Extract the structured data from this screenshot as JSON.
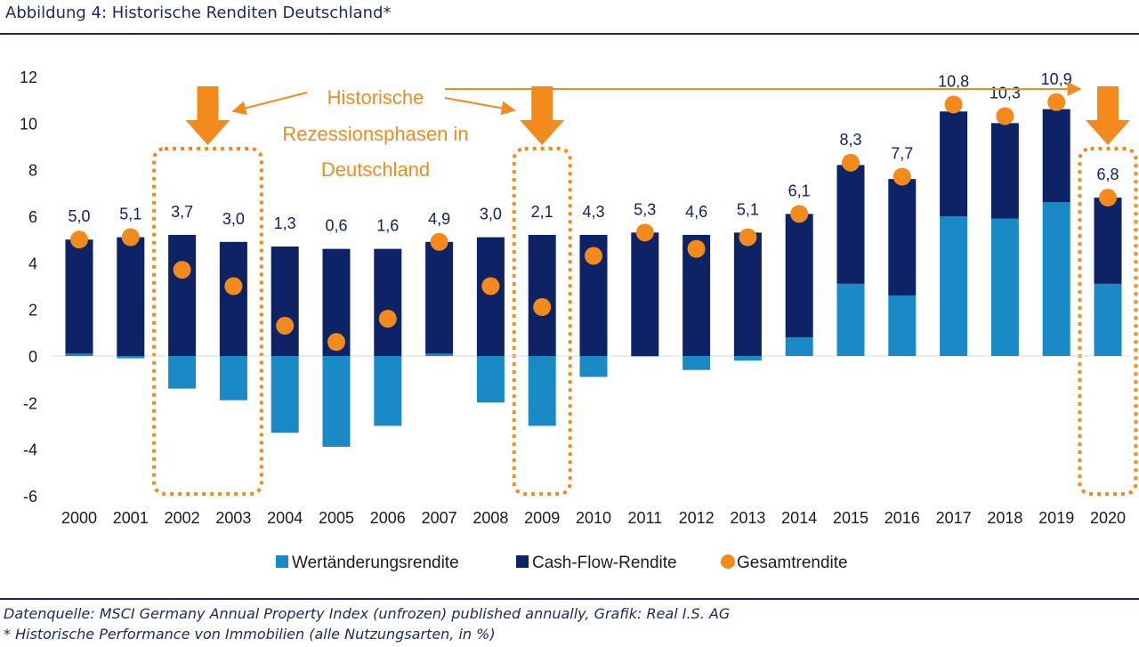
{
  "title": "Abbildung 4: Historische Renditen Deutschland*",
  "footnotes": {
    "source": "Datenquelle: MSCI Germany Annual Property Index (unfrozen) published annually, Grafik: Real I.S. AG",
    "note": "* Historische Performance von Immobilien (alle Nutzungsarten, in %)"
  },
  "annotation": {
    "lines": [
      "Historische",
      "Rezessionsphasen in",
      "Deutschland"
    ],
    "highlight_periods": [
      [
        "2002",
        "2003"
      ],
      [
        "2009"
      ],
      [
        "2020"
      ]
    ]
  },
  "colors": {
    "wertaenderung": "#1a8ac6",
    "cashflow": "#0e2266",
    "gesamt": "#f28a1c",
    "label": "#0e2266",
    "highlight": "#f28a1c"
  },
  "chart_data": {
    "type": "bar",
    "stacked": true,
    "categories": [
      "2000",
      "2001",
      "2002",
      "2003",
      "2004",
      "2005",
      "2006",
      "2007",
      "2008",
      "2009",
      "2010",
      "2011",
      "2012",
      "2013",
      "2014",
      "2015",
      "2016",
      "2017",
      "2018",
      "2019",
      "2020"
    ],
    "series": [
      {
        "name": "Wertänderungsrendite",
        "kind": "bar",
        "values": [
          0.1,
          -0.1,
          -1.4,
          -1.9,
          -3.3,
          -3.9,
          -3.0,
          0.1,
          -2.0,
          -3.0,
          -0.9,
          0.0,
          -0.6,
          -0.2,
          0.8,
          3.1,
          2.6,
          6.0,
          5.9,
          6.6,
          3.1
        ]
      },
      {
        "name": "Cash-Flow-Rendite",
        "kind": "bar",
        "values": [
          4.9,
          5.1,
          5.2,
          4.9,
          4.7,
          4.6,
          4.6,
          4.8,
          5.1,
          5.2,
          5.2,
          5.3,
          5.2,
          5.3,
          5.3,
          5.1,
          5.0,
          4.5,
          4.1,
          4.0,
          3.7
        ]
      },
      {
        "name": "Gesamtrendite",
        "kind": "point",
        "values": [
          5.0,
          5.1,
          3.7,
          3.0,
          1.3,
          0.6,
          1.6,
          4.9,
          3.0,
          2.1,
          4.3,
          5.3,
          4.6,
          5.1,
          6.1,
          8.3,
          7.7,
          10.8,
          10.3,
          10.9,
          6.8
        ]
      }
    ],
    "point_labels": [
      "5,0",
      "5,1",
      "3,7",
      "3,0",
      "1,3",
      "0,6",
      "1,6",
      "4,9",
      "3,0",
      "2,1",
      "4,3",
      "5,3",
      "4,6",
      "5,1",
      "6,1",
      "8,3",
      "7,7",
      "10,8",
      "10,3",
      "10,9",
      "6,8"
    ],
    "y_ticks": [
      "12",
      "10",
      "8",
      "6",
      "4",
      "2",
      "0",
      "-2",
      "-4",
      "-6"
    ],
    "ylim": [
      -6,
      12
    ],
    "grid": false,
    "legend_position": "bottom"
  }
}
